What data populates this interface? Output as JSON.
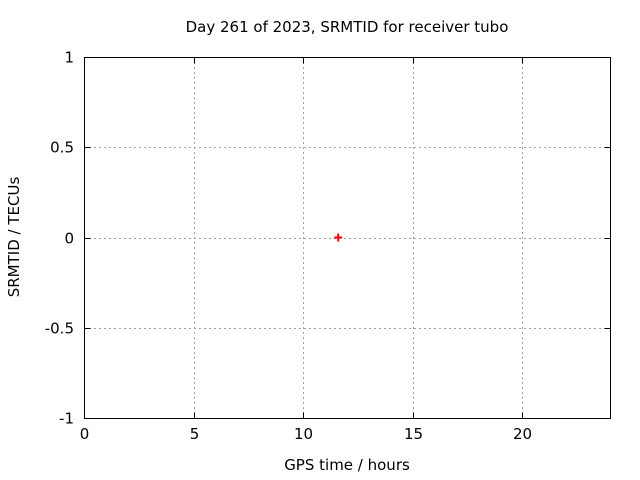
{
  "page": {
    "background": "#ffffff"
  },
  "chart_data": {
    "type": "scatter",
    "title": "Day 261 of 2023, SRMTID for receiver tubo",
    "xlabel": "GPS time / hours",
    "ylabel": "SRMTID / TECUs",
    "xlim": [
      0,
      24
    ],
    "ylim": [
      -1,
      1
    ],
    "xticks": [
      0,
      5,
      10,
      15,
      20
    ],
    "yticks": [
      -1,
      -0.5,
      0,
      0.5,
      1
    ],
    "grid": true,
    "legend": "none",
    "colors": {
      "marker": "#ff0000",
      "grid": "#a0a0a0",
      "axis": "#000000",
      "text": "#000000"
    },
    "series": [
      {
        "name": "SRMTID",
        "marker": "plus",
        "color": "#ff0000",
        "points": [
          {
            "x": 11.6,
            "y": 0.0
          }
        ]
      }
    ]
  }
}
